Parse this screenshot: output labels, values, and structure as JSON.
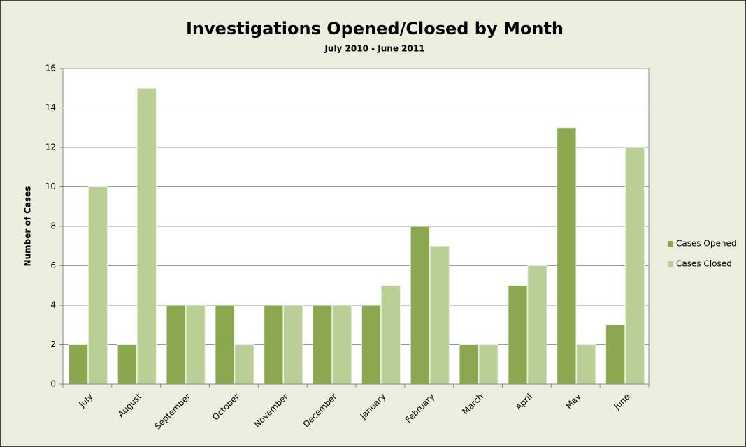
{
  "chart_data": {
    "type": "bar",
    "title": "Investigations Opened/Closed by Month",
    "subtitle": "July 2010 - June 2011",
    "y_label": "Number of Cases",
    "categories": [
      "July",
      "August",
      "September",
      "October",
      "November",
      "December",
      "January",
      "February",
      "March",
      "April",
      "May",
      "June"
    ],
    "series": [
      {
        "name": "Cases Opened",
        "color": "#8aa84f",
        "values": [
          2,
          2,
          4,
          4,
          4,
          4,
          4,
          8,
          2,
          5,
          13,
          3
        ]
      },
      {
        "name": "Cases Closed",
        "color": "#b9cf95",
        "values": [
          10,
          15,
          4,
          2,
          4,
          4,
          5,
          7,
          2,
          6,
          2,
          12
        ]
      }
    ],
    "ylim": [
      0,
      16
    ],
    "yticks": [
      0,
      2,
      4,
      6,
      8,
      10,
      12,
      14,
      16
    ],
    "grid": true,
    "legend": "right"
  }
}
